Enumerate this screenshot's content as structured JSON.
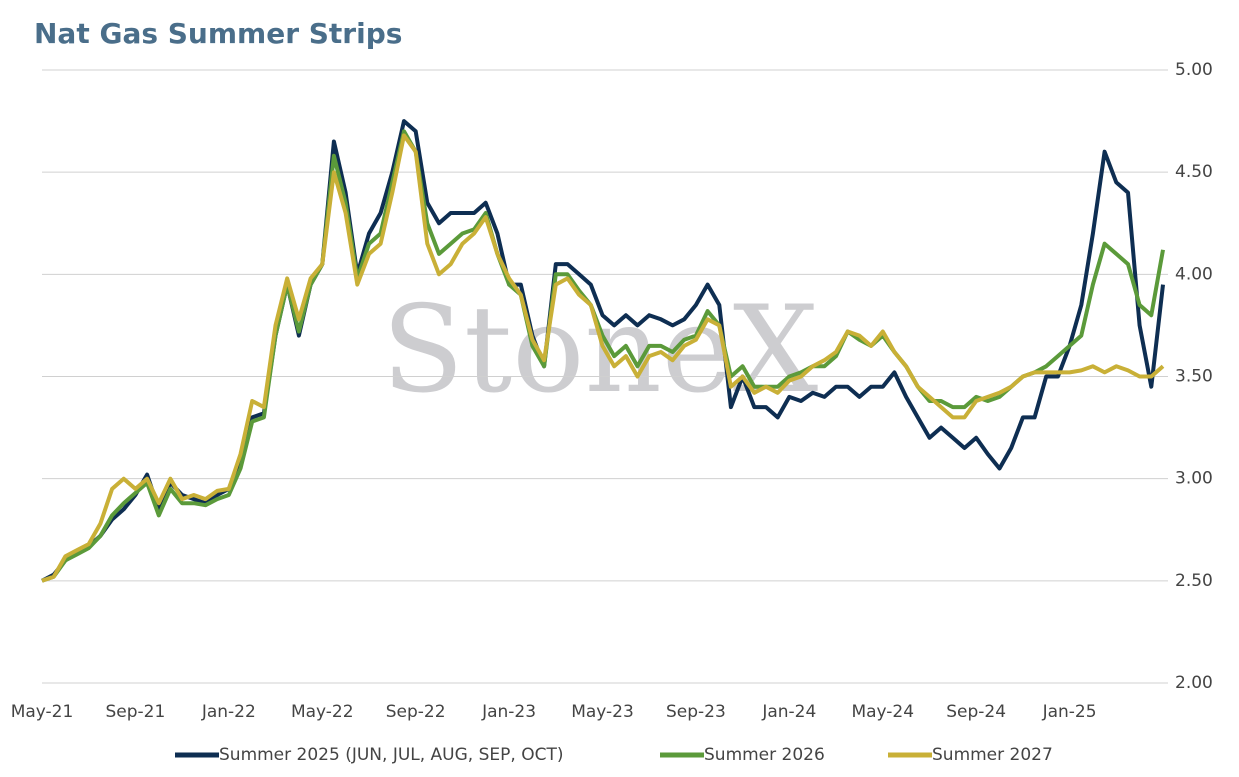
{
  "chart_data": {
    "type": "line",
    "title": "Nat Gas Summer Strips",
    "watermark": "StoneX",
    "categories": [
      "May-21",
      null,
      null,
      null,
      null,
      null,
      null,
      null,
      "Sep-21",
      null,
      null,
      null,
      null,
      null,
      null,
      null,
      "Jan-22",
      null,
      null,
      null,
      null,
      null,
      null,
      null,
      "May-22",
      null,
      null,
      null,
      null,
      null,
      null,
      null,
      "Sep-22",
      null,
      null,
      null,
      null,
      null,
      null,
      null,
      "Jan-23",
      null,
      null,
      null,
      null,
      null,
      null,
      null,
      "May-23",
      null,
      null,
      null,
      null,
      null,
      null,
      null,
      "Sep-23",
      null,
      null,
      null,
      null,
      null,
      null,
      null,
      "Jan-24",
      null,
      null,
      null,
      null,
      null,
      null,
      null,
      "May-24",
      null,
      null,
      null,
      null,
      null,
      null,
      null,
      "Sep-24",
      null,
      null,
      null,
      null,
      null,
      null,
      null,
      "Jan-25",
      null,
      null,
      null,
      null,
      null,
      null,
      null,
      null
    ],
    "series": [
      {
        "name": "Summer 2025 (JUN, JUL, AUG, SEP, OCT)",
        "color": "#0e2e52",
        "values": [
          2.5,
          2.53,
          2.6,
          2.64,
          2.67,
          2.72,
          2.8,
          2.85,
          2.92,
          3.02,
          2.85,
          2.98,
          2.92,
          2.9,
          2.88,
          2.92,
          2.95,
          3.1,
          3.3,
          3.32,
          3.7,
          3.95,
          3.7,
          3.95,
          4.05,
          4.65,
          4.4,
          4.0,
          4.2,
          4.3,
          4.5,
          4.75,
          4.7,
          4.35,
          4.25,
          4.3,
          4.3,
          4.3,
          4.35,
          4.2,
          3.95,
          3.95,
          3.7,
          3.55,
          4.05,
          4.05,
          4.0,
          3.95,
          3.8,
          3.75,
          3.8,
          3.75,
          3.8,
          3.78,
          3.75,
          3.78,
          3.85,
          3.95,
          3.85,
          3.35,
          3.5,
          3.35,
          3.35,
          3.3,
          3.4,
          3.38,
          3.42,
          3.4,
          3.45,
          3.45,
          3.4,
          3.45,
          3.45,
          3.52,
          3.4,
          3.3,
          3.2,
          3.25,
          3.2,
          3.15,
          3.2,
          3.12,
          3.05,
          3.15,
          3.3,
          3.3,
          3.5,
          3.5,
          3.65,
          3.85,
          4.2,
          4.6,
          4.45,
          4.4,
          3.75,
          3.45,
          3.95
        ]
      },
      {
        "name": "Summer 2026",
        "color": "#5b9a3a",
        "values": [
          2.5,
          2.52,
          2.6,
          2.63,
          2.66,
          2.72,
          2.82,
          2.88,
          2.93,
          2.98,
          2.82,
          2.95,
          2.88,
          2.88,
          2.87,
          2.9,
          2.92,
          3.05,
          3.28,
          3.3,
          3.7,
          3.95,
          3.72,
          3.95,
          4.05,
          4.58,
          4.35,
          3.98,
          4.15,
          4.2,
          4.45,
          4.7,
          4.6,
          4.25,
          4.1,
          4.15,
          4.2,
          4.22,
          4.3,
          4.1,
          3.95,
          3.9,
          3.65,
          3.55,
          4.0,
          4.0,
          3.92,
          3.85,
          3.7,
          3.6,
          3.65,
          3.55,
          3.65,
          3.65,
          3.62,
          3.68,
          3.7,
          3.82,
          3.75,
          3.5,
          3.55,
          3.45,
          3.45,
          3.45,
          3.5,
          3.52,
          3.55,
          3.55,
          3.6,
          3.72,
          3.68,
          3.65,
          3.7,
          3.62,
          3.55,
          3.45,
          3.38,
          3.38,
          3.35,
          3.35,
          3.4,
          3.38,
          3.4,
          3.45,
          3.5,
          3.52,
          3.55,
          3.6,
          3.65,
          3.7,
          3.95,
          4.15,
          4.1,
          4.05,
          3.85,
          3.8,
          4.12
        ]
      },
      {
        "name": "Summer 2027",
        "color": "#c9b037",
        "values": [
          2.5,
          2.52,
          2.62,
          2.65,
          2.68,
          2.78,
          2.95,
          3.0,
          2.95,
          3.0,
          2.88,
          3.0,
          2.9,
          2.92,
          2.9,
          2.94,
          2.95,
          3.12,
          3.38,
          3.35,
          3.75,
          3.98,
          3.78,
          3.98,
          4.05,
          4.5,
          4.3,
          3.95,
          4.1,
          4.15,
          4.4,
          4.68,
          4.6,
          4.15,
          4.0,
          4.05,
          4.15,
          4.2,
          4.28,
          4.1,
          3.98,
          3.9,
          3.68,
          3.58,
          3.95,
          3.98,
          3.9,
          3.85,
          3.65,
          3.55,
          3.6,
          3.5,
          3.6,
          3.62,
          3.58,
          3.65,
          3.68,
          3.78,
          3.75,
          3.45,
          3.5,
          3.42,
          3.45,
          3.42,
          3.48,
          3.5,
          3.55,
          3.58,
          3.62,
          3.72,
          3.7,
          3.65,
          3.72,
          3.62,
          3.55,
          3.45,
          3.4,
          3.35,
          3.3,
          3.3,
          3.38,
          3.4,
          3.42,
          3.45,
          3.5,
          3.52,
          3.52,
          3.52,
          3.52,
          3.53,
          3.55,
          3.52,
          3.55,
          3.53,
          3.5,
          3.5,
          3.55
        ]
      }
    ],
    "ylim": [
      2,
      5
    ],
    "yticks": [
      {
        "value": 2,
        "label": "2.00"
      },
      {
        "value": 2.5,
        "label": "2.50"
      },
      {
        "value": 3,
        "label": "3.00"
      },
      {
        "value": 3.5,
        "label": "3.50"
      },
      {
        "value": 4,
        "label": "4.00"
      },
      {
        "value": 4.5,
        "label": "4.50"
      },
      {
        "value": 5,
        "label": "5.00"
      }
    ],
    "grid": true,
    "legend": "bottom"
  }
}
